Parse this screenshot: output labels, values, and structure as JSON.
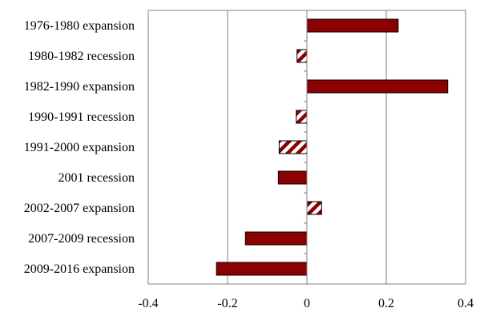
{
  "chart_data": {
    "type": "bar",
    "orientation": "horizontal",
    "categories": [
      "1976-1980 expansion",
      "1980-1982 recession",
      "1982-1990 expansion",
      "1990-1991 recession",
      "1991-2000 expansion",
      "2001 recession",
      "2002-2007 expansion",
      "2007-2009 recession",
      "2009-2016 expansion"
    ],
    "values": [
      0.23,
      -0.025,
      0.355,
      -0.027,
      -0.07,
      -0.072,
      0.037,
      -0.155,
      -0.228
    ],
    "bar_styles": [
      "solid",
      "hatched",
      "solid",
      "hatched",
      "hatched",
      "solid",
      "hatched",
      "solid",
      "solid"
    ],
    "xlim": [
      -0.4,
      0.4
    ],
    "xticks": [
      -0.4,
      -0.2,
      0,
      0.2,
      0.4
    ],
    "xtick_labels": [
      "-0.4",
      "-0.2",
      "0",
      "0.2",
      "0.4"
    ],
    "grid": "vertical",
    "legend": "none",
    "title": "",
    "xlabel": "",
    "ylabel": "",
    "colors": {
      "bar_fill": "#8b0000",
      "bar_stroke": "#000000",
      "hatch_stripe": "#8b0000",
      "hatch_background": "#ffffff",
      "grid": "#808080",
      "axis": "#808080"
    }
  }
}
